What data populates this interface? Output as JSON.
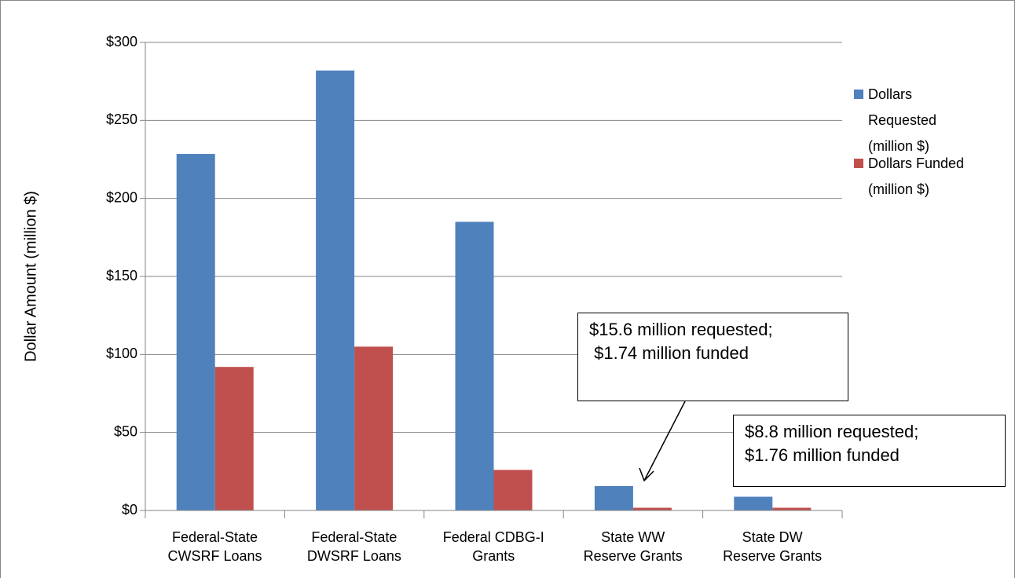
{
  "chart_data": {
    "type": "bar",
    "y_axis_label": "Dollar Amount (million $)",
    "categories": [
      "Federal-State\nCWSRF Loans",
      "Federal-State\nDWSRF Loans",
      "Federal CDBG-I\nGrants",
      "State WW\nReserve Grants",
      "State DW\nReserve Grants"
    ],
    "series": [
      {
        "name": "Dollars\nRequested\n(million $)",
        "color": "#4f81bd",
        "values": [
          228.5,
          282,
          185,
          15.6,
          8.8
        ]
      },
      {
        "name": "Dollars Funded\n(million $)",
        "color": "#c0504d",
        "values": [
          92,
          105,
          26,
          1.74,
          1.76
        ]
      }
    ],
    "ylim": [
      0,
      300
    ],
    "yticks": [
      {
        "value": 0,
        "label": "$0"
      },
      {
        "value": 50,
        "label": "$50"
      },
      {
        "value": 100,
        "label": "$100"
      },
      {
        "value": 150,
        "label": "$150"
      },
      {
        "value": 200,
        "label": "$200"
      },
      {
        "value": 250,
        "label": "$250"
      },
      {
        "value": 300,
        "label": "$300"
      }
    ],
    "grid": true,
    "legend": "right",
    "annotations": [
      "$15.6 million requested;\n $1.74 million funded",
      "$8.8 million requested;\n$1.76 million funded"
    ]
  }
}
